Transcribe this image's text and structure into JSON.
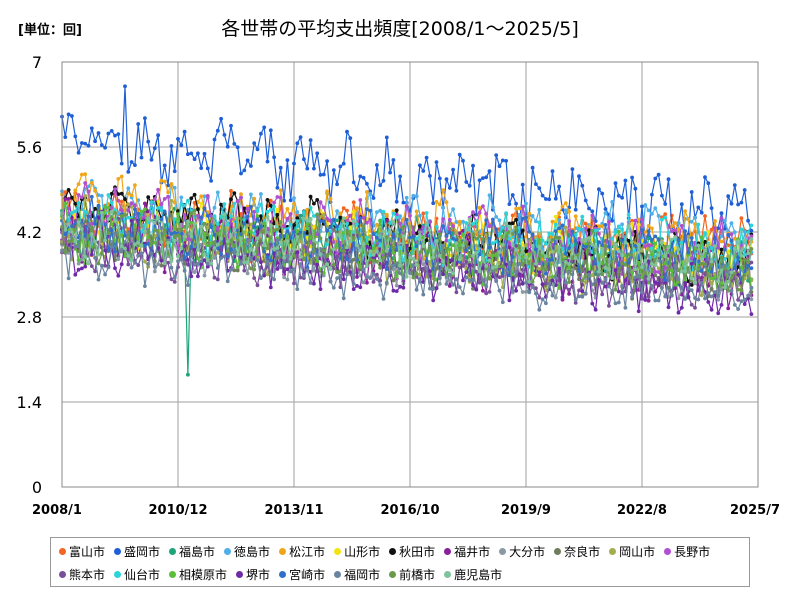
{
  "header": {
    "unit": "[単位：回]",
    "title": "各世帯の平均支出頻度[2008/1～2025/5]"
  },
  "chart_data": {
    "type": "line",
    "title": "各世帯の平均支出頻度[2008/1～2025/5]",
    "unit_label": "[単位：回]",
    "x_range": [
      "2008/1",
      "2025/7"
    ],
    "x_tick_labels": [
      "2008/1",
      "2010/12",
      "2013/11",
      "2016/10",
      "2019/9",
      "2022/8",
      "2025/7"
    ],
    "y_tick_labels": [
      "0",
      "1.4",
      "2.8",
      "4.2",
      "5.6",
      "7"
    ],
    "ylim": [
      0,
      7
    ],
    "grid": true,
    "legend_position": "bottom",
    "marker": "circle",
    "series": [
      {
        "name": "富山市",
        "color": "#f26522",
        "base": [
          4.4,
          4.0
        ],
        "amp": 0.45
      },
      {
        "name": "盛岡市",
        "color": "#1f5fd6",
        "base": [
          5.7,
          4.5
        ],
        "amp": 0.55
      },
      {
        "name": "福島市",
        "color": "#1ea37a",
        "base": [
          4.2,
          3.7
        ],
        "amp": 0.4
      },
      {
        "name": "徳島市",
        "color": "#4fb0e8",
        "base": [
          4.6,
          4.1
        ],
        "amp": 0.45
      },
      {
        "name": "松江市",
        "color": "#f0a61a",
        "base": [
          4.7,
          4.0
        ],
        "amp": 0.45
      },
      {
        "name": "山形市",
        "color": "#f2e313",
        "base": [
          4.3,
          3.8
        ],
        "amp": 0.4
      },
      {
        "name": "秋田市",
        "color": "#111111",
        "base": [
          4.6,
          3.7
        ],
        "amp": 0.4
      },
      {
        "name": "福井市",
        "color": "#8a1f9c",
        "base": [
          4.2,
          3.4
        ],
        "amp": 0.45
      },
      {
        "name": "大分市",
        "color": "#8a9aa5",
        "base": [
          4.0,
          3.4
        ],
        "amp": 0.4
      },
      {
        "name": "奈良市",
        "color": "#6f7d5c",
        "base": [
          4.1,
          3.5
        ],
        "amp": 0.4
      },
      {
        "name": "岡山市",
        "color": "#a3ad4c",
        "base": [
          4.3,
          3.5
        ],
        "amp": 0.45
      },
      {
        "name": "長野市",
        "color": "#b04fd0",
        "base": [
          4.5,
          3.9
        ],
        "amp": 0.45
      },
      {
        "name": "熊本市",
        "color": "#7a4f9a",
        "base": [
          4.0,
          3.3
        ],
        "amp": 0.4
      },
      {
        "name": "仙台市",
        "color": "#2cd3d9",
        "base": [
          4.4,
          3.9
        ],
        "amp": 0.4
      },
      {
        "name": "相模原市",
        "color": "#5bbd3a",
        "base": [
          4.2,
          3.6
        ],
        "amp": 0.4
      },
      {
        "name": "堺市",
        "color": "#6f2aa8",
        "base": [
          4.0,
          3.2
        ],
        "amp": 0.4
      },
      {
        "name": "宮崎市",
        "color": "#3070c8",
        "base": [
          4.3,
          3.8
        ],
        "amp": 0.4
      },
      {
        "name": "福岡市",
        "color": "#6a84a0",
        "base": [
          3.9,
          3.2
        ],
        "amp": 0.4
      },
      {
        "name": "前橋市",
        "color": "#6a9a4c",
        "base": [
          4.2,
          3.6
        ],
        "amp": 0.4
      },
      {
        "name": "鹿児島市",
        "color": "#7fc39a",
        "base": [
          4.2,
          3.7
        ],
        "amp": 0.4
      }
    ],
    "notable_points": [
      {
        "series": "福島市",
        "x": "2011/3",
        "y": 1.85
      },
      {
        "series": "盛岡市",
        "x": "2009/8",
        "y": 6.6
      }
    ]
  }
}
